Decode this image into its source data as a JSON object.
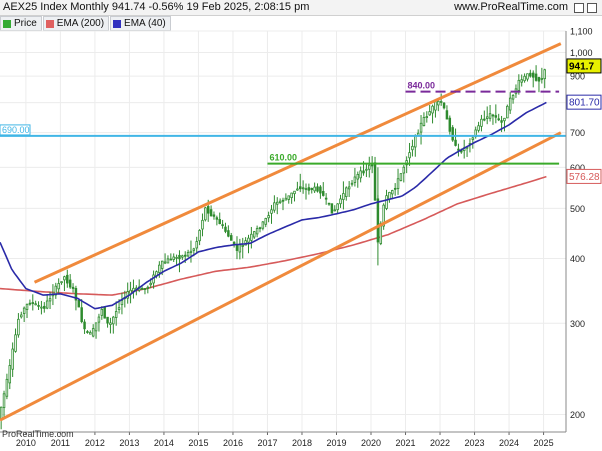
{
  "header": {
    "title": "AEX25 Index Monthly 941.74 -0.56% 19 Feb 2025, 2:08:15 pm",
    "site": "www.ProRealTime.com"
  },
  "legend": [
    {
      "label": "Price",
      "color": "#33aa33"
    },
    {
      "label": "EMA (200)",
      "color": "#e06060"
    },
    {
      "label": "EMA (40)",
      "color": "#3030c0"
    }
  ],
  "footer": "ProRealTime.com",
  "colors": {
    "candle": "#2e8b2e",
    "ema200": "#d65a5a",
    "ema40": "#2a2aa8",
    "channel": "#f08a3c",
    "line690": "#41b6e6",
    "line610": "#3aaa2a",
    "line840": "#7a2a9a"
  },
  "chart_data": {
    "type": "candlestick",
    "title": "AEX25 Index Monthly",
    "scale": "log",
    "ylim": [
      185,
      1100
    ],
    "xlim": [
      2009.25,
      2025.65
    ],
    "x_ticks": [
      "2010",
      "2011",
      "2012",
      "2013",
      "2014",
      "2015",
      "2016",
      "2017",
      "2018",
      "2019",
      "2020",
      "2021",
      "2022",
      "2023",
      "2024",
      "2025"
    ],
    "y_ticks": [
      200,
      300,
      400,
      500,
      600,
      700,
      800,
      900,
      1000,
      1100
    ],
    "y_tick_labels": [
      "200",
      "300",
      "400",
      "500",
      "600",
      "700",
      "800",
      "900",
      "1,000",
      "1,100"
    ],
    "price_anchors": [
      [
        2009.2,
        195
      ],
      [
        2009.5,
        240
      ],
      [
        2009.8,
        310
      ],
      [
        2010.1,
        330
      ],
      [
        2010.5,
        320
      ],
      [
        2010.8,
        345
      ],
      [
        2011.1,
        370
      ],
      [
        2011.4,
        345
      ],
      [
        2011.7,
        290
      ],
      [
        2011.9,
        285
      ],
      [
        2012.2,
        320
      ],
      [
        2012.4,
        295
      ],
      [
        2012.8,
        335
      ],
      [
        2013.1,
        350
      ],
      [
        2013.5,
        350
      ],
      [
        2013.9,
        390
      ],
      [
        2014.2,
        400
      ],
      [
        2014.6,
        405
      ],
      [
        2014.9,
        420
      ],
      [
        2015.2,
        500
      ],
      [
        2015.6,
        470
      ],
      [
        2015.9,
        440
      ],
      [
        2016.1,
        415
      ],
      [
        2016.5,
        440
      ],
      [
        2016.9,
        470
      ],
      [
        2017.2,
        510
      ],
      [
        2017.6,
        525
      ],
      [
        2017.9,
        550
      ],
      [
        2018.1,
        545
      ],
      [
        2018.5,
        545
      ],
      [
        2018.9,
        490
      ],
      [
        2019.1,
        520
      ],
      [
        2019.5,
        570
      ],
      [
        2019.9,
        600
      ],
      [
        2020.05,
        610
      ],
      [
        2020.2,
        430
      ],
      [
        2020.4,
        520
      ],
      [
        2020.7,
        550
      ],
      [
        2020.9,
        590
      ],
      [
        2021.1,
        640
      ],
      [
        2021.5,
        740
      ],
      [
        2021.9,
        800
      ],
      [
        2022.05,
        805
      ],
      [
        2022.2,
        740
      ],
      [
        2022.5,
        640
      ],
      [
        2022.8,
        660
      ],
      [
        2022.95,
        690
      ],
      [
        2023.2,
        740
      ],
      [
        2023.5,
        760
      ],
      [
        2023.8,
        730
      ],
      [
        2024.0,
        800
      ],
      [
        2024.3,
        880
      ],
      [
        2024.6,
        910
      ],
      [
        2024.9,
        880
      ],
      [
        2025.1,
        941.74
      ]
    ],
    "ema200_anchors": [
      [
        2009.25,
        350
      ],
      [
        2010.5,
        345
      ],
      [
        2011.5,
        342
      ],
      [
        2012.5,
        340
      ],
      [
        2013.5,
        350
      ],
      [
        2014.5,
        365
      ],
      [
        2015.5,
        378
      ],
      [
        2016.5,
        385
      ],
      [
        2017.5,
        396
      ],
      [
        2018.5,
        409
      ],
      [
        2019.5,
        425
      ],
      [
        2020.5,
        445
      ],
      [
        2021.5,
        475
      ],
      [
        2022.5,
        510
      ],
      [
        2023.5,
        535
      ],
      [
        2024.5,
        560
      ],
      [
        2025.1,
        576.28
      ]
    ],
    "ema40_anchors": [
      [
        2009.25,
        430
      ],
      [
        2009.6,
        380
      ],
      [
        2010.0,
        350
      ],
      [
        2010.5,
        340
      ],
      [
        2011.0,
        342
      ],
      [
        2011.5,
        335
      ],
      [
        2012.0,
        320
      ],
      [
        2012.5,
        325
      ],
      [
        2013.0,
        340
      ],
      [
        2013.5,
        360
      ],
      [
        2014.0,
        378
      ],
      [
        2014.5,
        392
      ],
      [
        2015.0,
        412
      ],
      [
        2015.5,
        420
      ],
      [
        2016.0,
        425
      ],
      [
        2016.5,
        428
      ],
      [
        2017.0,
        445
      ],
      [
        2017.5,
        460
      ],
      [
        2018.0,
        475
      ],
      [
        2018.5,
        480
      ],
      [
        2019.0,
        488
      ],
      [
        2019.5,
        497
      ],
      [
        2020.0,
        510
      ],
      [
        2020.5,
        520
      ],
      [
        2020.9,
        528
      ],
      [
        2021.3,
        550
      ],
      [
        2021.8,
        590
      ],
      [
        2022.2,
        625
      ],
      [
        2022.6,
        648
      ],
      [
        2023.0,
        670
      ],
      [
        2023.5,
        695
      ],
      [
        2024.0,
        725
      ],
      [
        2024.5,
        765
      ],
      [
        2025.1,
        801.7
      ]
    ],
    "channel_upper": [
      [
        2010.25,
        360
      ],
      [
        2025.5,
        1040
      ]
    ],
    "channel_lower": [
      [
        2009.25,
        195
      ],
      [
        2025.5,
        700
      ]
    ],
    "levels": [
      {
        "label": "690.00",
        "value": 690,
        "color": "#41b6e6",
        "from": 2009.25,
        "to": 2025.65,
        "label_side": "left"
      },
      {
        "label": "610.00",
        "value": 610,
        "color": "#3aaa2a",
        "from": 2017.0,
        "to": 2025.45,
        "label_side": "start"
      },
      {
        "label": "840.00",
        "value": 840,
        "color": "#7a2a9a",
        "from": 2021.0,
        "to": 2025.45,
        "label_side": "start",
        "dashed": true
      }
    ],
    "value_labels": [
      {
        "text": "941.7",
        "value": 941.74,
        "bg": "#e8f000",
        "fg": "#000"
      },
      {
        "text": "801.70",
        "value": 801.7,
        "bg": "#ffffff",
        "fg": "#2a2aa8"
      },
      {
        "text": "576.28",
        "value": 576.28,
        "bg": "#ffffff",
        "fg": "#d65a5a"
      }
    ]
  }
}
